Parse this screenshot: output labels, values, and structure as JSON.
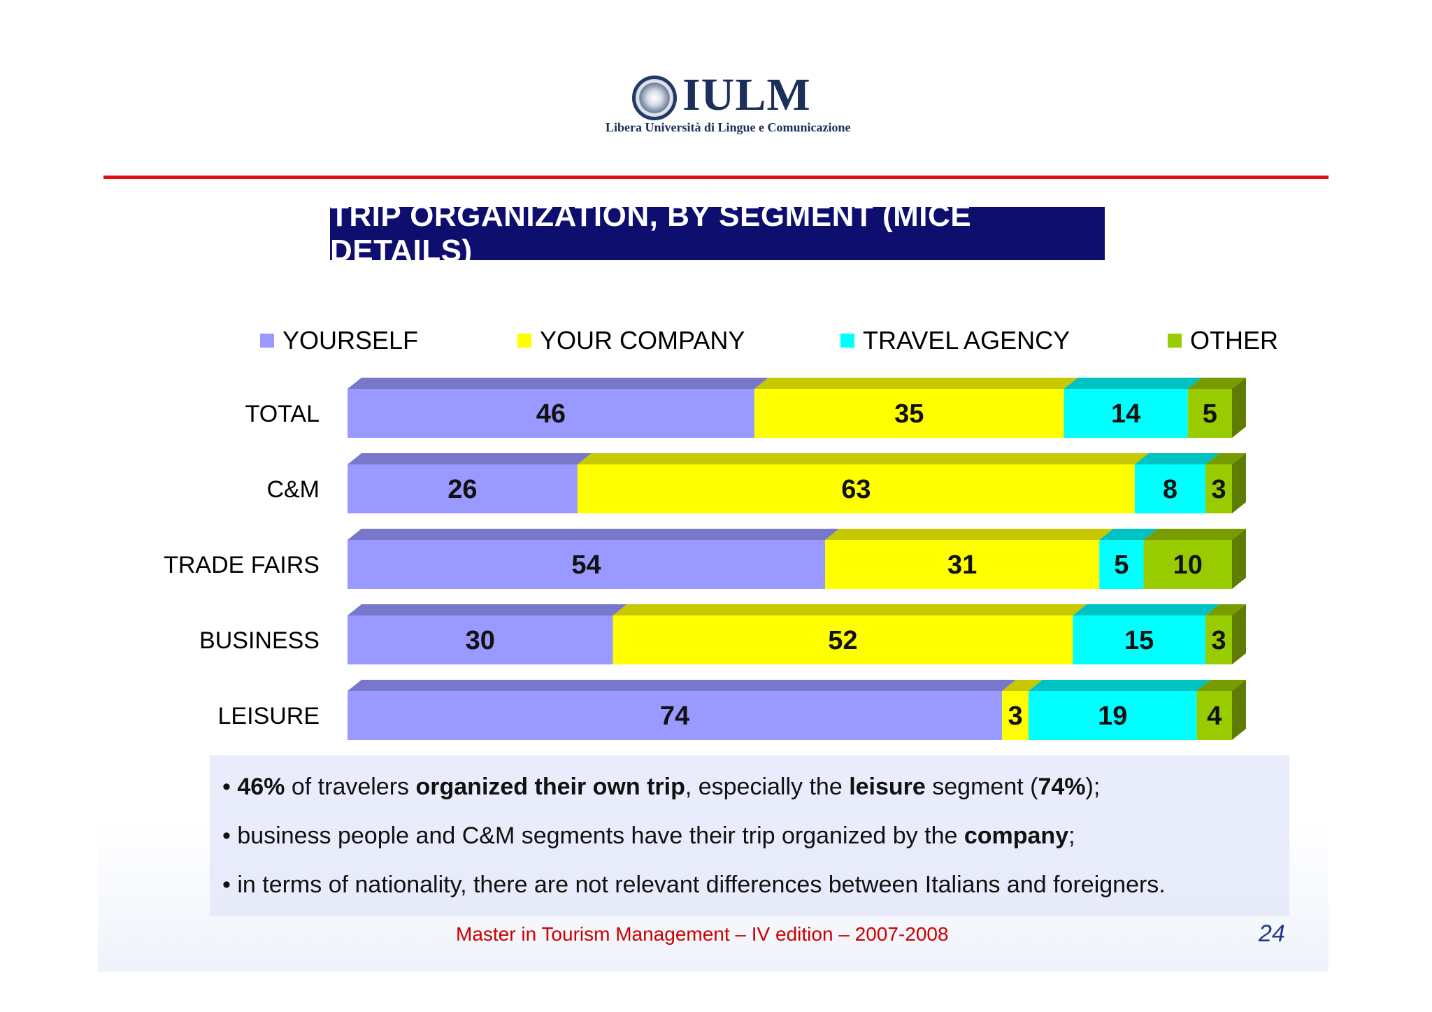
{
  "header": {
    "logo_text": "IULM",
    "logo_subtitle": "Libera Università di Lingue e Comunicazione"
  },
  "title": "TRIP ORGANIZATION, BY SEGMENT (MICE DETAILS)",
  "legend": [
    {
      "label": "YOURSELF",
      "color": "#9999ff"
    },
    {
      "label": "YOUR COMPANY",
      "color": "#ffff00"
    },
    {
      "label": "TRAVEL AGENCY",
      "color": "#00ffff"
    },
    {
      "label": "OTHER",
      "color": "#99cc00"
    }
  ],
  "chart_data": {
    "type": "bar",
    "orientation": "horizontal",
    "stacked": true,
    "categories": [
      "TOTAL",
      "C&M",
      "TRADE FAIRS",
      "BUSINESS",
      "LEISURE"
    ],
    "series": [
      {
        "name": "YOURSELF",
        "color": "#9999ff",
        "values": [
          46,
          26,
          54,
          30,
          74
        ]
      },
      {
        "name": "YOUR COMPANY",
        "color": "#ffff00",
        "values": [
          35,
          63,
          31,
          52,
          3
        ]
      },
      {
        "name": "TRAVEL AGENCY",
        "color": "#00ffff",
        "values": [
          14,
          8,
          5,
          15,
          19
        ]
      },
      {
        "name": "OTHER",
        "color": "#99cc00",
        "values": [
          5,
          3,
          10,
          3,
          4
        ]
      }
    ],
    "xlim": [
      0,
      100
    ],
    "grid": false,
    "legend_position": "top"
  },
  "notes": {
    "bullets": [
      [
        {
          "text": "• ",
          "bold": false
        },
        {
          "text": "46%",
          "bold": true
        },
        {
          "text": " of travelers ",
          "bold": false
        },
        {
          "text": "organized their own trip",
          "bold": true
        },
        {
          "text": ", especially the ",
          "bold": false
        },
        {
          "text": "leisure",
          "bold": true
        },
        {
          "text": " segment (",
          "bold": false
        },
        {
          "text": "74%",
          "bold": true
        },
        {
          "text": ");",
          "bold": false
        }
      ],
      [
        {
          "text": "• business people and C&M segments have their trip organized by the ",
          "bold": false
        },
        {
          "text": "company",
          "bold": true
        },
        {
          "text": ";",
          "bold": false
        }
      ],
      [
        {
          "text": "• in terms of nationality, there are not relevant differences between Italians and foreigners.",
          "bold": false
        }
      ]
    ]
  },
  "footer": {
    "text": "Master in Tourism Management – IV edition – 2007-2008",
    "page_number": "24"
  }
}
